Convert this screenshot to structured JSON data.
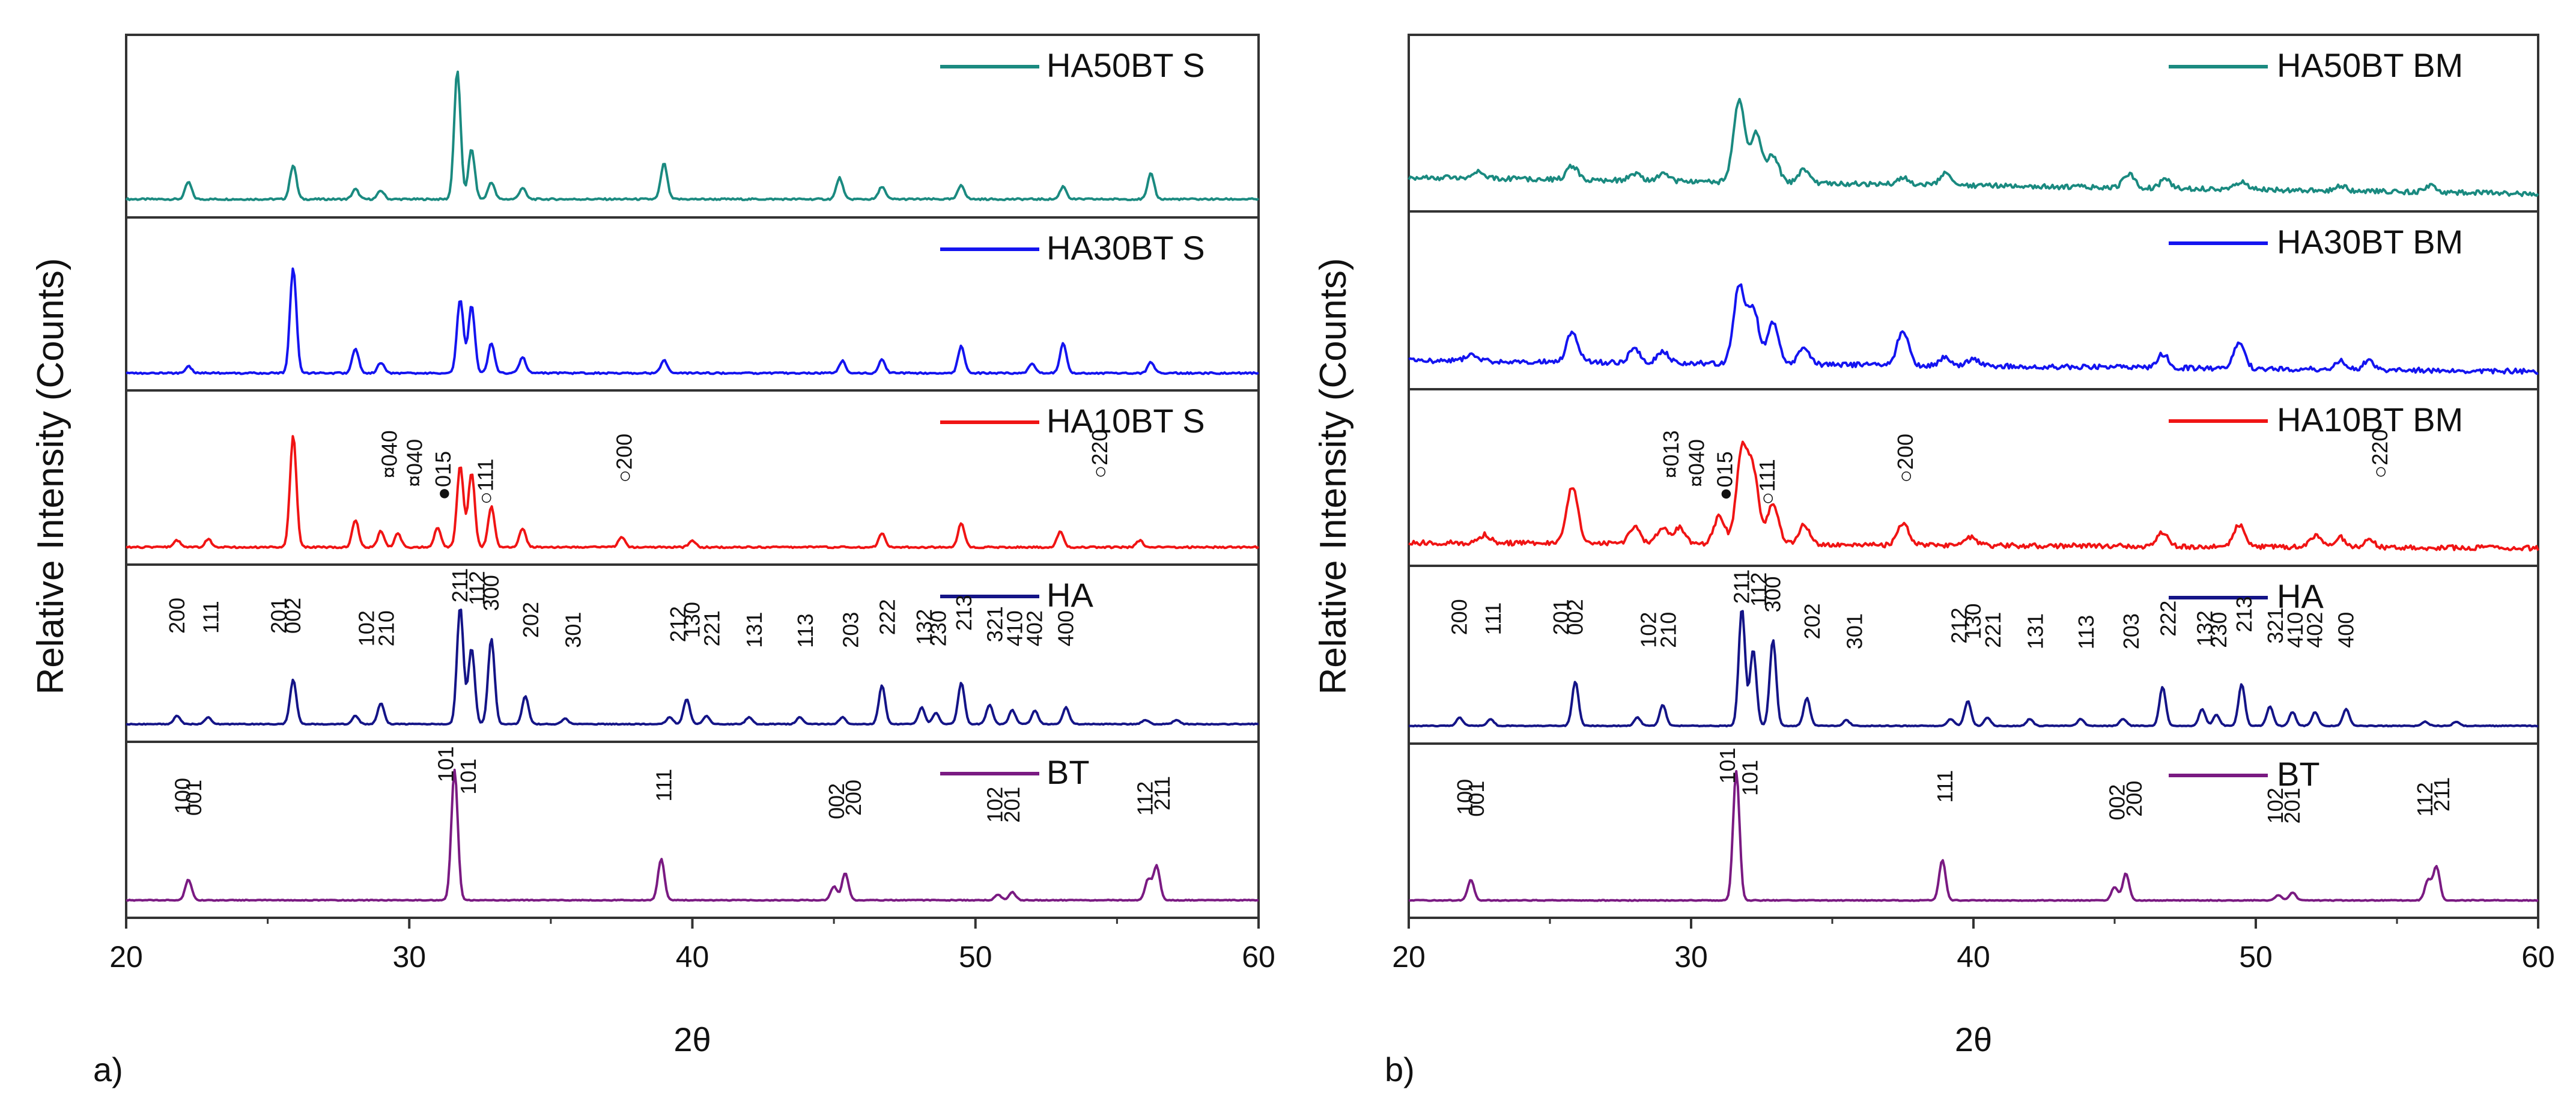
{
  "chart_data": [
    {
      "type": "line",
      "panel_tag": "a)",
      "xlabel": "2θ",
      "ylabel": "Relative Intensity (Counts)",
      "xlim": [
        20,
        60
      ],
      "xticks": [
        "20",
        "30",
        "40",
        "50",
        "60"
      ],
      "subplots": [
        {
          "legend": "HA50BT S",
          "color": "#1a8a80",
          "peaks": [
            [
              22.2,
              0.12
            ],
            [
              25.9,
              0.24
            ],
            [
              28.1,
              0.07
            ],
            [
              29.0,
              0.06
            ],
            [
              31.7,
              0.9
            ],
            [
              32.2,
              0.35
            ],
            [
              32.9,
              0.12
            ],
            [
              34.0,
              0.08
            ],
            [
              39.0,
              0.25
            ],
            [
              45.2,
              0.15
            ],
            [
              46.7,
              0.09
            ],
            [
              49.5,
              0.1
            ],
            [
              53.1,
              0.09
            ],
            [
              56.2,
              0.18
            ]
          ]
        },
        {
          "legend": "HA30BT S",
          "color": "#1414f0",
          "peaks": [
            [
              22.2,
              0.05
            ],
            [
              25.9,
              0.78
            ],
            [
              28.1,
              0.18
            ],
            [
              29.0,
              0.08
            ],
            [
              31.8,
              0.55
            ],
            [
              32.2,
              0.5
            ],
            [
              32.9,
              0.22
            ],
            [
              34.0,
              0.12
            ],
            [
              39.0,
              0.1
            ],
            [
              45.3,
              0.09
            ],
            [
              46.7,
              0.1
            ],
            [
              49.5,
              0.2
            ],
            [
              52.0,
              0.07
            ],
            [
              53.1,
              0.22
            ],
            [
              56.2,
              0.08
            ]
          ]
        },
        {
          "legend": "HA10BT S",
          "color": "#f01414",
          "peaks": [
            [
              21.8,
              0.05
            ],
            [
              22.9,
              0.06
            ],
            [
              25.9,
              0.82
            ],
            [
              28.1,
              0.2
            ],
            [
              29.0,
              0.12
            ],
            [
              29.6,
              0.1
            ],
            [
              31.0,
              0.14
            ],
            [
              31.8,
              0.6
            ],
            [
              32.2,
              0.55
            ],
            [
              32.9,
              0.3
            ],
            [
              34.0,
              0.14
            ],
            [
              37.5,
              0.08
            ],
            [
              40.0,
              0.05
            ],
            [
              46.7,
              0.1
            ],
            [
              49.5,
              0.18
            ],
            [
              53.0,
              0.12
            ],
            [
              55.8,
              0.05
            ]
          ],
          "annotations": [
            "¤040",
            "¤040",
            "●015",
            "○111",
            "○200",
            "○220"
          ]
        },
        {
          "legend": "HA",
          "color": "#141487",
          "peaks": [
            [
              21.8,
              0.06
            ],
            [
              22.9,
              0.05
            ],
            [
              25.9,
              0.32
            ],
            [
              28.1,
              0.06
            ],
            [
              29.0,
              0.15
            ],
            [
              31.8,
              0.85
            ],
            [
              32.2,
              0.55
            ],
            [
              32.9,
              0.62
            ],
            [
              34.1,
              0.2
            ],
            [
              35.5,
              0.04
            ],
            [
              39.2,
              0.05
            ],
            [
              39.8,
              0.18
            ],
            [
              40.5,
              0.06
            ],
            [
              42.0,
              0.05
            ],
            [
              43.8,
              0.05
            ],
            [
              45.3,
              0.05
            ],
            [
              46.7,
              0.28
            ],
            [
              48.1,
              0.12
            ],
            [
              48.6,
              0.08
            ],
            [
              49.5,
              0.3
            ],
            [
              50.5,
              0.14
            ],
            [
              51.3,
              0.1
            ],
            [
              52.1,
              0.1
            ],
            [
              53.2,
              0.12
            ],
            [
              56.0,
              0.03
            ],
            [
              57.1,
              0.03
            ]
          ],
          "hkl": [
            "200",
            "111",
            "201",
            "002",
            "102",
            "210",
            "211",
            "112",
            "300",
            "202",
            "301",
            "212",
            "130",
            "221",
            "131",
            "113",
            "203",
            "222",
            "132",
            "230",
            "213",
            "321",
            "410",
            "402",
            "400"
          ]
        },
        {
          "legend": "BT",
          "color": "#7a1a82",
          "peaks": [
            [
              22.2,
              0.15
            ],
            [
              31.6,
              0.95
            ],
            [
              38.9,
              0.3
            ],
            [
              45.0,
              0.1
            ],
            [
              45.4,
              0.2
            ],
            [
              50.8,
              0.04
            ],
            [
              51.3,
              0.06
            ],
            [
              56.1,
              0.15
            ],
            [
              56.4,
              0.25
            ]
          ],
          "hkl": [
            "100",
            "001",
            "101",
            "101",
            "111",
            "002",
            "200",
            "102",
            "201",
            "112",
            "211"
          ]
        }
      ]
    },
    {
      "type": "line",
      "panel_tag": "b)",
      "xlabel": "2θ",
      "ylabel": "Relative Intensity (Counts)",
      "xlim": [
        20,
        60
      ],
      "xticks": [
        "20",
        "30",
        "40",
        "50",
        "60"
      ],
      "subplots": [
        {
          "legend": "HA50BT BM",
          "color": "#1a8a80",
          "peaks": [
            [
              22.5,
              0.05
            ],
            [
              25.8,
              0.1
            ],
            [
              28.0,
              0.05
            ],
            [
              29.0,
              0.05
            ],
            [
              31.7,
              0.6
            ],
            [
              32.3,
              0.35
            ],
            [
              32.9,
              0.2
            ],
            [
              34.0,
              0.1
            ],
            [
              37.5,
              0.05
            ],
            [
              39.0,
              0.08
            ],
            [
              45.5,
              0.1
            ],
            [
              46.8,
              0.06
            ],
            [
              49.5,
              0.06
            ],
            [
              53.0,
              0.04
            ],
            [
              56.2,
              0.05
            ]
          ]
        },
        {
          "legend": "HA30BT BM",
          "color": "#1414f0",
          "peaks": [
            [
              22.2,
              0.04
            ],
            [
              25.8,
              0.22
            ],
            [
              28.0,
              0.1
            ],
            [
              29.0,
              0.08
            ],
            [
              31.7,
              0.55
            ],
            [
              32.2,
              0.4
            ],
            [
              32.9,
              0.3
            ],
            [
              34.0,
              0.12
            ],
            [
              37.5,
              0.25
            ],
            [
              39.0,
              0.06
            ],
            [
              40.0,
              0.05
            ],
            [
              46.7,
              0.1
            ],
            [
              49.4,
              0.18
            ],
            [
              53.0,
              0.06
            ],
            [
              54.0,
              0.06
            ]
          ]
        },
        {
          "legend": "HA10BT BM",
          "color": "#f01414",
          "peaks": [
            [
              22.7,
              0.06
            ],
            [
              25.8,
              0.42
            ],
            [
              28.0,
              0.12
            ],
            [
              29.0,
              0.12
            ],
            [
              29.6,
              0.12
            ],
            [
              31.0,
              0.2
            ],
            [
              31.8,
              0.65
            ],
            [
              32.2,
              0.5
            ],
            [
              32.9,
              0.3
            ],
            [
              34.0,
              0.14
            ],
            [
              37.5,
              0.16
            ],
            [
              39.9,
              0.06
            ],
            [
              46.7,
              0.1
            ],
            [
              49.4,
              0.16
            ],
            [
              52.1,
              0.08
            ],
            [
              53.0,
              0.07
            ],
            [
              54.0,
              0.05
            ]
          ],
          "annotations": [
            "¤013",
            "¤040",
            "●015",
            "○111",
            "○200",
            "○220"
          ]
        },
        {
          "legend": "HA",
          "color": "#141487",
          "peaks": [
            [
              21.8,
              0.06
            ],
            [
              22.9,
              0.05
            ],
            [
              25.9,
              0.32
            ],
            [
              28.1,
              0.06
            ],
            [
              29.0,
              0.15
            ],
            [
              31.8,
              0.85
            ],
            [
              32.2,
              0.55
            ],
            [
              32.9,
              0.62
            ],
            [
              34.1,
              0.2
            ],
            [
              35.5,
              0.04
            ],
            [
              39.2,
              0.05
            ],
            [
              39.8,
              0.18
            ],
            [
              40.5,
              0.06
            ],
            [
              42.0,
              0.05
            ],
            [
              43.8,
              0.05
            ],
            [
              45.3,
              0.05
            ],
            [
              46.7,
              0.28
            ],
            [
              48.1,
              0.12
            ],
            [
              48.6,
              0.08
            ],
            [
              49.5,
              0.3
            ],
            [
              50.5,
              0.14
            ],
            [
              51.3,
              0.1
            ],
            [
              52.1,
              0.1
            ],
            [
              53.2,
              0.12
            ],
            [
              56.0,
              0.03
            ],
            [
              57.1,
              0.03
            ]
          ],
          "hkl": [
            "200",
            "111",
            "201",
            "002",
            "102",
            "210",
            "211",
            "112",
            "300",
            "202",
            "301",
            "212",
            "130",
            "221",
            "131",
            "113",
            "203",
            "222",
            "132",
            "230",
            "213",
            "321",
            "410",
            "402",
            "400"
          ]
        },
        {
          "legend": "BT",
          "color": "#7a1a82",
          "peaks": [
            [
              22.2,
              0.15
            ],
            [
              31.6,
              0.95
            ],
            [
              38.9,
              0.3
            ],
            [
              45.0,
              0.1
            ],
            [
              45.4,
              0.2
            ],
            [
              50.8,
              0.04
            ],
            [
              51.3,
              0.06
            ],
            [
              56.1,
              0.15
            ],
            [
              56.4,
              0.25
            ]
          ],
          "hkl": [
            "100",
            "001",
            "101",
            "101",
            "111",
            "002",
            "200",
            "102",
            "201",
            "112",
            "211"
          ]
        }
      ]
    }
  ]
}
